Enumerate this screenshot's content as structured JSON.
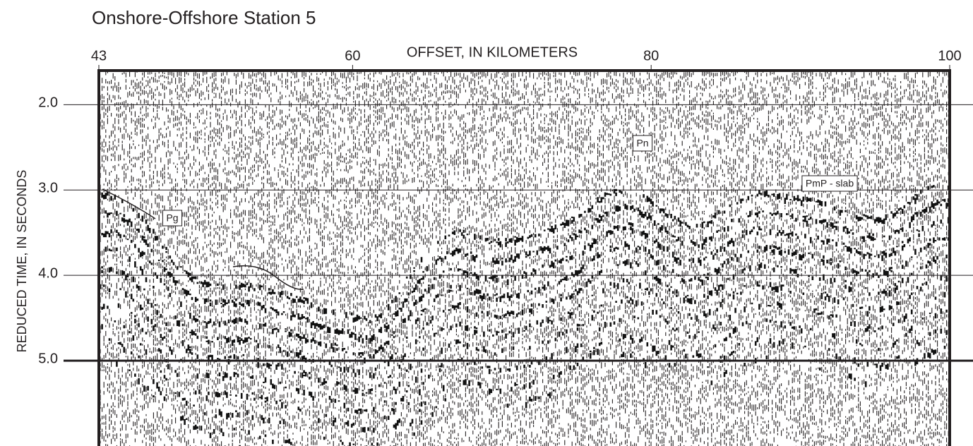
{
  "chart_data": {
    "type": "seismic",
    "title": "Onshore-Offshore Station 5",
    "x_label": "OFFSET, IN KILOMETERS",
    "y_label": "REDUCED TIME, IN SECONDS",
    "xlim": [
      43,
      100
    ],
    "xticks": [
      43,
      60,
      80,
      100
    ],
    "ylim": [
      6.0,
      1.6
    ],
    "yticks": [
      {
        "value": 2,
        "label": "2.0"
      },
      {
        "value": 3,
        "label": "3.0"
      },
      {
        "value": 4,
        "label": "4.0"
      },
      {
        "value": 5,
        "label": "5.0"
      }
    ],
    "grid": true,
    "annotations": [
      "Pn",
      "PmP - slab",
      "Pg"
    ]
  }
}
